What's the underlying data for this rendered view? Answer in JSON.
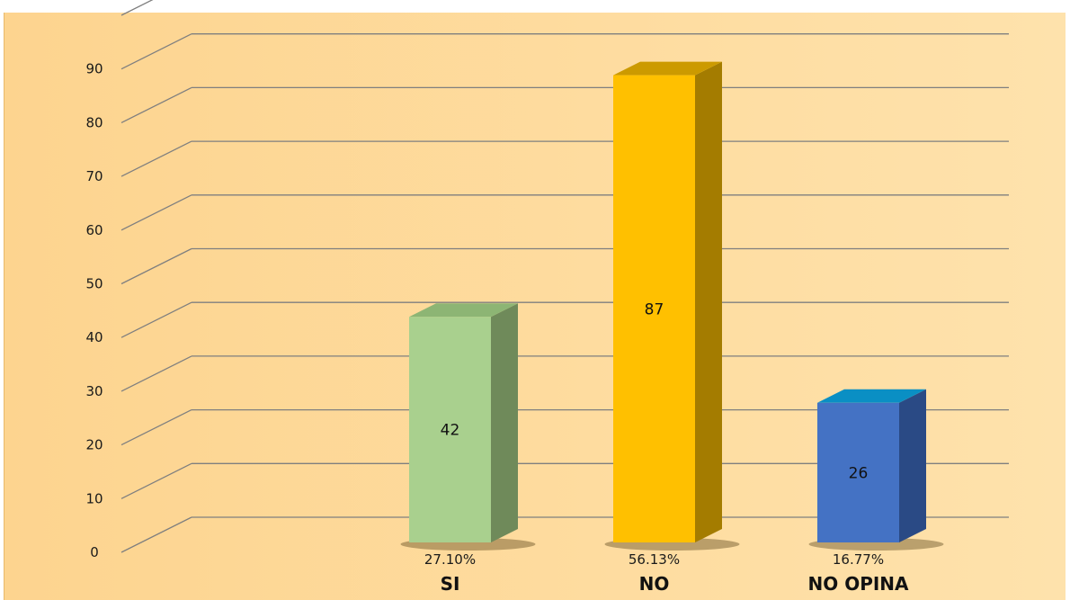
{
  "chart_data": {
    "type": "bar",
    "categories": [
      "SI",
      "NO",
      "NO OPINA"
    ],
    "values": [
      42,
      87,
      26
    ],
    "percent_labels": [
      "27.10%",
      "56.13%",
      "16.77%"
    ],
    "ylim": [
      0,
      90
    ],
    "yticks": [
      0,
      10,
      20,
      30,
      40,
      50,
      60,
      70,
      80,
      90
    ],
    "grid": true,
    "legend": "none",
    "bar_colors": [
      {
        "front": "#a9d08e",
        "side": "#6f8a5a",
        "top": "#8db574"
      },
      {
        "front": "#ffc000",
        "side": "#a47c00",
        "top": "#cc9a00"
      },
      {
        "front": "#4472c4",
        "side": "#2a4a85",
        "top": "#0a8fc4"
      }
    ],
    "background": "#fdd48f",
    "gridline_color": "#7f7f7f"
  }
}
